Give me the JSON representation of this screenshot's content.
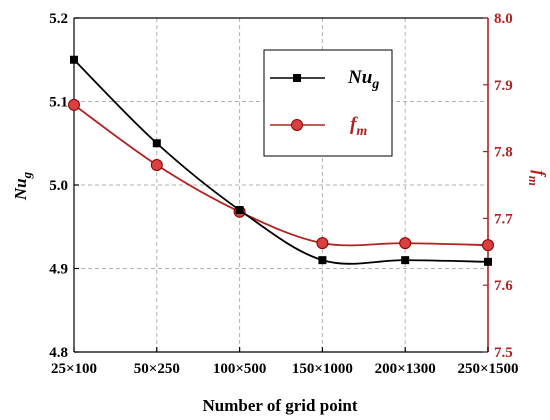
{
  "chart_data": {
    "type": "line",
    "categories": [
      "25×100",
      "50×250",
      "100×500",
      "150×1000",
      "200×1300",
      "250×1500"
    ],
    "xlabel": "Number of grid point",
    "y_left": {
      "label_main": "Nu",
      "label_sub": "g",
      "ylim": [
        4.8,
        5.2
      ],
      "ticks": [
        "4.8",
        "4.9",
        "5.0",
        "5.1",
        "5.2"
      ]
    },
    "y_right": {
      "label_main": "f",
      "label_sub": "m",
      "ylim": [
        7.5,
        8.0
      ],
      "ticks": [
        "7.5",
        "7.6",
        "7.7",
        "7.8",
        "7.9",
        "8.0"
      ]
    },
    "series": [
      {
        "name_main": "Nu",
        "name_sub": "g",
        "axis": "left",
        "color": "#000000",
        "marker": "square",
        "values": [
          5.15,
          5.05,
          4.97,
          4.91,
          4.91,
          4.908
        ]
      },
      {
        "name_main": "f",
        "name_sub": "m",
        "axis": "right",
        "color": "#b22222",
        "marker": "circle",
        "values": [
          7.87,
          7.78,
          7.71,
          7.663,
          7.663,
          7.66
        ]
      }
    ],
    "grid": true,
    "legend": "top-right"
  }
}
